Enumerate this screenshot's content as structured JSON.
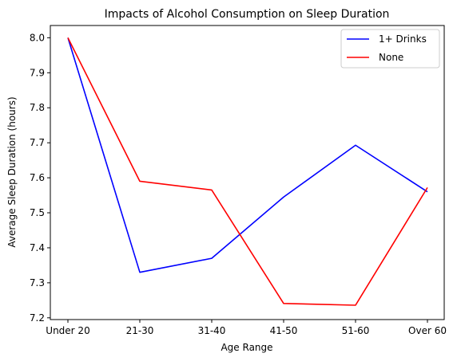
{
  "chart_data": {
    "type": "line",
    "title": "Impacts of Alcohol Consumption on Sleep Duration",
    "xlabel": "Age Range",
    "ylabel": "Average Sleep Duration (hours)",
    "categories": [
      "Under 20",
      "21-30",
      "31-40",
      "41-50",
      "51-60",
      "Over 60"
    ],
    "ylim": [
      7.195,
      8.035
    ],
    "yticks": [
      7.2,
      7.3,
      7.4,
      7.5,
      7.6,
      7.7,
      7.8,
      7.9,
      8.0
    ],
    "ytick_labels": [
      "7.2",
      "7.3",
      "7.4",
      "7.5",
      "7.6",
      "7.7",
      "7.8",
      "7.9",
      "8.0"
    ],
    "grid": false,
    "legend_position": "top-right",
    "series": [
      {
        "name": "1+ Drinks",
        "color": "#0000ff",
        "values": [
          8.0,
          7.33,
          7.37,
          7.545,
          7.693,
          7.56
        ]
      },
      {
        "name": "None",
        "color": "#ff0000",
        "values": [
          8.0,
          7.59,
          7.565,
          7.241,
          7.236,
          7.572
        ]
      }
    ]
  }
}
